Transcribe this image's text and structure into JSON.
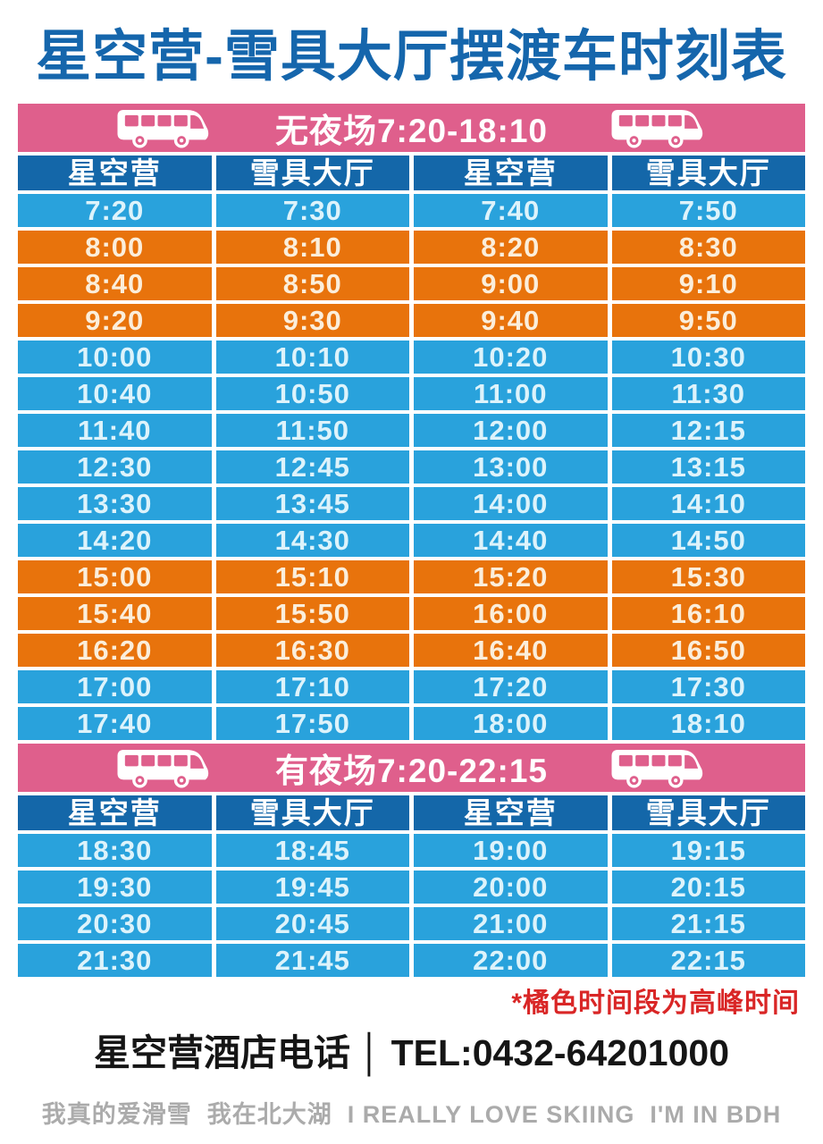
{
  "title": "星空营-雪具大厅摆渡车时刻表",
  "colors": {
    "title_blue": "#1566AC",
    "banner_pink": "#DF5F8C",
    "header_blue": "#1467A9",
    "row_blue": "#29A2DC",
    "row_orange": "#E8730C",
    "note_red": "#D92626"
  },
  "sections": [
    {
      "banner": "无夜场7:20-18:10",
      "headers": [
        "星空营",
        "雪具大厅",
        "星空营",
        "雪具大厅"
      ],
      "rows": [
        {
          "times": [
            "7:20",
            "7:30",
            "7:40",
            "7:50"
          ],
          "peak": false
        },
        {
          "times": [
            "8:00",
            "8:10",
            "8:20",
            "8:30"
          ],
          "peak": true
        },
        {
          "times": [
            "8:40",
            "8:50",
            "9:00",
            "9:10"
          ],
          "peak": true
        },
        {
          "times": [
            "9:20",
            "9:30",
            "9:40",
            "9:50"
          ],
          "peak": true
        },
        {
          "times": [
            "10:00",
            "10:10",
            "10:20",
            "10:30"
          ],
          "peak": false
        },
        {
          "times": [
            "10:40",
            "10:50",
            "11:00",
            "11:30"
          ],
          "peak": false
        },
        {
          "times": [
            "11:40",
            "11:50",
            "12:00",
            "12:15"
          ],
          "peak": false
        },
        {
          "times": [
            "12:30",
            "12:45",
            "13:00",
            "13:15"
          ],
          "peak": false
        },
        {
          "times": [
            "13:30",
            "13:45",
            "14:00",
            "14:10"
          ],
          "peak": false
        },
        {
          "times": [
            "14:20",
            "14:30",
            "14:40",
            "14:50"
          ],
          "peak": false
        },
        {
          "times": [
            "15:00",
            "15:10",
            "15:20",
            "15:30"
          ],
          "peak": true
        },
        {
          "times": [
            "15:40",
            "15:50",
            "16:00",
            "16:10"
          ],
          "peak": true
        },
        {
          "times": [
            "16:20",
            "16:30",
            "16:40",
            "16:50"
          ],
          "peak": true
        },
        {
          "times": [
            "17:00",
            "17:10",
            "17:20",
            "17:30"
          ],
          "peak": false
        },
        {
          "times": [
            "17:40",
            "17:50",
            "18:00",
            "18:10"
          ],
          "peak": false
        }
      ]
    },
    {
      "banner": "有夜场7:20-22:15",
      "headers": [
        "星空营",
        "雪具大厅",
        "星空营",
        "雪具大厅"
      ],
      "rows": [
        {
          "times": [
            "18:30",
            "18:45",
            "19:00",
            "19:15"
          ],
          "peak": false
        },
        {
          "times": [
            "19:30",
            "19:45",
            "20:00",
            "20:15"
          ],
          "peak": false
        },
        {
          "times": [
            "20:30",
            "20:45",
            "21:00",
            "21:15"
          ],
          "peak": false
        },
        {
          "times": [
            "21:30",
            "21:45",
            "22:00",
            "22:15"
          ],
          "peak": false
        }
      ]
    }
  ],
  "peak_note": "*橘色时间段为高峰时间",
  "phone": {
    "label": "星空营酒店电话",
    "separator": "│",
    "tel": "TEL:0432-64201000"
  },
  "slogan": "我真的爱滑雪  我在北大湖  I REALLY LOVE SKIING  I'M IN BDH"
}
